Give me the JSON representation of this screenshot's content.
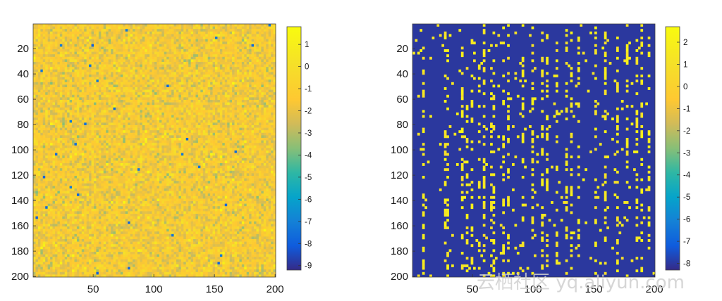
{
  "chart_data": [
    {
      "type": "heatmap",
      "x": {
        "range": [
          1,
          200
        ],
        "ticks": [
          50,
          100,
          150,
          200
        ],
        "tick_labels": [
          "50",
          "100",
          "150",
          "200"
        ]
      },
      "y": {
        "range": [
          1,
          200
        ],
        "ticks": [
          20,
          40,
          60,
          80,
          100,
          120,
          140,
          160,
          180,
          200
        ],
        "tick_labels": [
          "20",
          "40",
          "60",
          "80",
          "100",
          "120",
          "140",
          "160",
          "180",
          "200"
        ]
      },
      "colorbar": {
        "range": [
          -9.2,
          1.8
        ],
        "ticks": [
          1,
          0,
          -1,
          -2,
          -3,
          -4,
          -5,
          -6,
          -7,
          -8,
          -9
        ],
        "tick_labels": [
          "1",
          "0",
          "-1",
          "-2",
          "-3",
          "-4",
          "-5",
          "-6",
          "-7",
          "-8",
          "-9"
        ]
      },
      "colormap": "parula",
      "pattern": "dense random noise, values mostly between -3 and 0",
      "title": "",
      "xlabel": "",
      "ylabel": ""
    },
    {
      "type": "heatmap",
      "x": {
        "range": [
          1,
          200
        ],
        "ticks": [
          50,
          100,
          150,
          200
        ],
        "tick_labels": [
          "50",
          "100",
          "150",
          "200"
        ]
      },
      "y": {
        "range": [
          1,
          200
        ],
        "ticks": [
          20,
          40,
          60,
          80,
          100,
          120,
          140,
          160,
          180,
          200
        ],
        "tick_labels": [
          "20",
          "40",
          "60",
          "80",
          "100",
          "120",
          "140",
          "160",
          "180",
          "200"
        ]
      },
      "colorbar": {
        "range": [
          -8.3,
          2.7
        ],
        "ticks": [
          2,
          1,
          0,
          -1,
          -2,
          -3,
          -4,
          -5,
          -6,
          -7,
          -8
        ],
        "tick_labels": [
          "2",
          "1",
          "0",
          "-1",
          "-2",
          "-3",
          "-4",
          "-5",
          "-6",
          "-7",
          "-8"
        ]
      },
      "colormap": "parula",
      "pattern": "mostly -8 background with sparse high-valued points concentrated in vertical column bands",
      "dense_columns": [
        10,
        27,
        28,
        29,
        30,
        42,
        46,
        50,
        55,
        60,
        65,
        68,
        75,
        80,
        92,
        100,
        108,
        112,
        120,
        128,
        132,
        138,
        152,
        160,
        170,
        178,
        185,
        190,
        195
      ],
      "title": "",
      "xlabel": "",
      "ylabel": ""
    }
  ],
  "colors": {
    "parula_low": "#352a87",
    "parula_mid": "#29a9b0",
    "parula_high": "#f9fb0e",
    "text": "#1a1a1a"
  },
  "watermark": {
    "text": "云栖社区 yq.aliyun.com"
  }
}
